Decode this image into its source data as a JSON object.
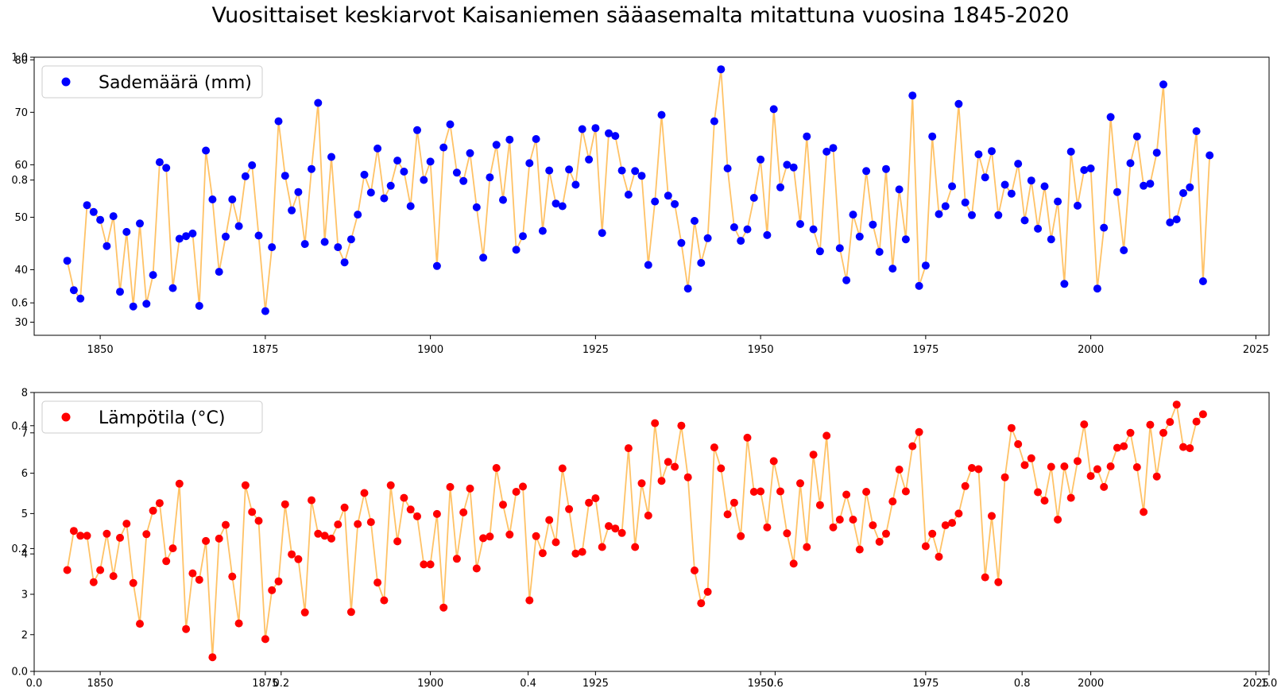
{
  "title": "Vuosittaiset keskiarvot Kaisaniemen sääasemalta mitattuna vuosina 1845-2020",
  "chart_data": [
    {
      "type": "scatter",
      "connecting_line": true,
      "x_start": 1845,
      "xlim": [
        1840,
        2027
      ],
      "ylim": [
        27.5,
        80.5
      ],
      "yticks": [
        30,
        40,
        50,
        60,
        70,
        80
      ],
      "xticks": [
        1850,
        1875,
        1900,
        1925,
        1950,
        1975,
        2000,
        2025
      ],
      "legend": "Sademäärä (mm)",
      "legend_position": "upper-left",
      "marker_color": "#0000ff",
      "line_color": "#ffc266",
      "values": [
        41.7,
        36.1,
        34.5,
        52.3,
        51.0,
        49.5,
        44.5,
        50.2,
        35.8,
        47.2,
        33.0,
        48.8,
        33.5,
        39.0,
        60.5,
        59.4,
        36.5,
        45.9,
        46.4,
        46.9,
        33.1,
        62.7,
        53.4,
        39.6,
        46.3,
        53.4,
        48.3,
        57.8,
        59.9,
        46.5,
        32.1,
        44.3,
        68.3,
        57.9,
        51.3,
        54.8,
        44.9,
        59.2,
        71.8,
        45.3,
        61.5,
        44.3,
        41.4,
        45.8,
        50.5,
        58.1,
        54.7,
        63.1,
        53.6,
        56.0,
        60.8,
        58.7,
        52.1,
        66.6,
        57.1,
        60.6,
        40.7,
        63.3,
        67.7,
        58.5,
        56.9,
        62.2,
        51.9,
        42.3,
        57.6,
        63.8,
        53.3,
        64.8,
        43.8,
        46.4,
        60.3,
        64.9,
        47.4,
        58.9,
        52.6,
        52.1,
        59.1,
        56.2,
        66.8,
        61.0,
        67.0,
        47.0,
        66.0,
        65.5,
        58.9,
        54.3,
        58.8,
        57.9,
        40.9,
        53.0,
        69.5,
        54.1,
        52.5,
        45.1,
        36.4,
        49.3,
        41.3,
        46.0,
        68.3,
        78.2,
        59.3,
        48.1,
        45.5,
        47.7,
        53.7,
        61.0,
        46.6,
        70.6,
        55.7,
        60.0,
        59.5,
        48.7,
        65.4,
        47.7,
        43.5,
        62.5,
        63.2,
        44.1,
        38.0,
        50.5,
        46.3,
        58.8,
        48.6,
        43.4,
        59.2,
        40.2,
        55.3,
        45.8,
        73.2,
        36.9,
        40.8,
        65.4,
        50.6,
        52.1,
        55.9,
        71.6,
        52.8,
        50.4,
        62.0,
        57.6,
        62.6,
        50.4,
        56.2,
        54.5,
        60.2,
        49.4,
        57.0,
        47.8,
        55.9,
        45.8,
        53.0,
        37.3,
        62.5,
        52.2,
        59.0,
        59.3,
        36.4,
        48.0,
        69.1,
        54.8,
        43.7,
        60.3,
        65.4,
        56.0,
        56.4,
        62.3,
        75.3,
        49.0,
        49.6,
        54.6,
        55.7,
        66.4,
        37.8,
        61.8
      ]
    },
    {
      "type": "scatter",
      "connecting_line": true,
      "x_start": 1845,
      "xlim": [
        1840,
        2027
      ],
      "ylim": [
        1.09,
        8.0
      ],
      "yticks": [
        2,
        3,
        4,
        5,
        6,
        7,
        8
      ],
      "xticks": [
        1850,
        1875,
        1900,
        1925,
        1950,
        1975,
        2000,
        2025
      ],
      "legend": "Lämpötila (°C)",
      "legend_position": "upper-left",
      "marker_color": "#ff0000",
      "line_color": "#ffc266",
      "values": [
        3.6,
        4.57,
        4.45,
        4.45,
        3.3,
        3.6,
        4.5,
        3.45,
        4.4,
        4.75,
        3.28,
        2.27,
        4.49,
        5.07,
        5.26,
        3.82,
        4.14,
        5.74,
        2.14,
        3.52,
        3.36,
        4.32,
        1.44,
        4.38,
        4.72,
        3.44,
        2.28,
        5.7,
        5.04,
        4.82,
        1.89,
        3.1,
        3.32,
        5.23,
        3.99,
        3.87,
        2.55,
        5.33,
        4.5,
        4.45,
        4.38,
        4.73,
        5.15,
        2.56,
        4.74,
        5.51,
        4.79,
        3.29,
        2.85,
        5.7,
        4.31,
        5.39,
        5.1,
        4.93,
        3.74,
        3.74,
        4.99,
        2.67,
        5.66,
        3.88,
        5.03,
        5.62,
        3.64,
        4.39,
        4.43,
        6.13,
        5.22,
        4.48,
        5.54,
        5.67,
        2.85,
        4.44,
        4.02,
        4.84,
        4.29,
        6.12,
        5.11,
        4.01,
        4.05,
        5.27,
        5.38,
        4.17,
        4.69,
        4.63,
        4.52,
        6.62,
        4.17,
        5.75,
        4.95,
        7.24,
        5.81,
        6.28,
        6.16,
        7.18,
        5.9,
        3.59,
        2.78,
        3.06,
        6.64,
        6.12,
        4.98,
        5.27,
        4.44,
        6.88,
        5.54,
        5.55,
        4.66,
        6.3,
        5.55,
        4.51,
        3.76,
        5.75,
        4.17,
        6.46,
        5.21,
        6.93,
        4.66,
        4.85,
        5.47,
        4.85,
        4.11,
        5.54,
        4.71,
        4.3,
        4.5,
        5.3,
        6.09,
        5.55,
        6.67,
        7.02,
        4.19,
        4.5,
        3.93,
        4.71,
        4.77,
        5.0,
        5.68,
        6.13,
        6.1,
        3.42,
        4.94,
        3.3,
        5.9,
        7.12,
        6.72,
        6.2,
        6.37,
        5.53,
        5.32,
        6.16,
        4.85,
        6.17,
        5.39,
        6.3,
        7.21,
        5.93,
        6.1,
        5.66,
        6.17,
        6.63,
        6.67,
        7.0,
        6.15,
        5.04,
        7.2,
        5.92,
        7.0,
        7.27,
        7.7,
        6.65,
        6.62,
        7.28,
        7.46
      ]
    }
  ],
  "overlay_axis": {
    "ylim": [
      0.0,
      1.0
    ],
    "yticks": [
      "0.0",
      "0.2",
      "0.4",
      "0.6",
      "0.8",
      "1.0"
    ],
    "xticks": [
      "0.0",
      "0.2",
      "0.4",
      "0.6",
      "0.8",
      "1.0"
    ]
  }
}
